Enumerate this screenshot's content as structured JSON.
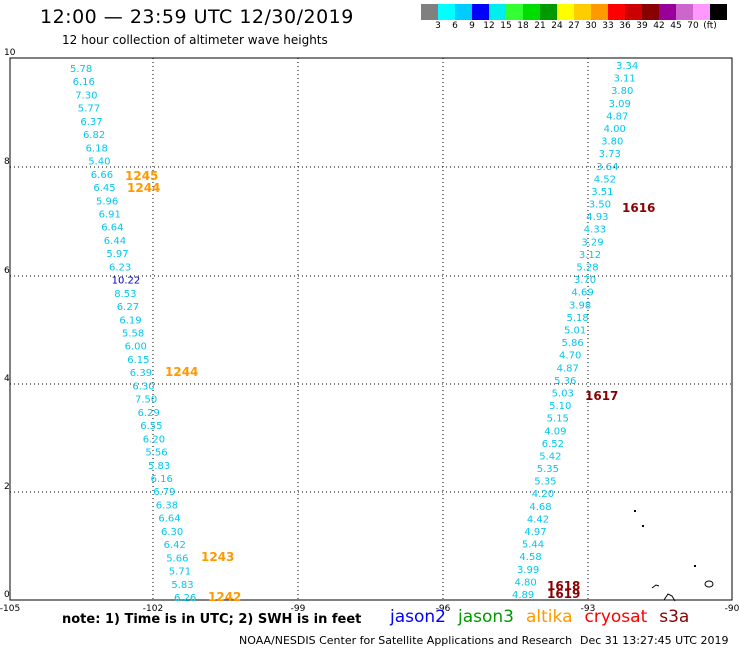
{
  "header": {
    "title": "12:00 — 23:59 UTC 12/30/2019",
    "subtitle": "12 hour collection of altimeter wave heights"
  },
  "color_scale": {
    "colors": [
      "#808080",
      "#00ffff",
      "#00ccff",
      "#0000ff",
      "#00eeee",
      "#33ff33",
      "#00dd00",
      "#009900",
      "#ffff00",
      "#ffcc00",
      "#ff9900",
      "#ff0000",
      "#cc0000",
      "#880000",
      "#990099",
      "#cc66cc",
      "#ff99ff",
      "#000000"
    ],
    "labels": [
      "3",
      "6",
      "9",
      "12",
      "15",
      "18",
      "21",
      "24",
      "27",
      "30",
      "33",
      "36",
      "39",
      "42",
      "45",
      "70",
      "(ft)"
    ]
  },
  "axes": {
    "x_ticks": [
      "-105",
      "-102",
      "-99",
      "-96",
      "-93",
      "-90"
    ],
    "y_ticks": [
      "0",
      "2",
      "4",
      "6",
      "8",
      "10"
    ]
  },
  "track_left": {
    "color": "#00c8ee",
    "values": [
      "5.78",
      "6.16",
      "7.30",
      "5.77",
      "6.37",
      "6.82",
      "6.18",
      "5.40",
      "6.66",
      "6.45",
      "5.96",
      "6.91",
      "6.64",
      "6.44",
      "5.97",
      "6.23",
      "10.22",
      "8.53",
      "6.27",
      "6.19",
      "5.58",
      "6.00",
      "6.15",
      "6.39",
      "6.30",
      "7.50",
      "6.29",
      "6.55",
      "6.20",
      "5.56",
      "5.83",
      "6.16",
      "6.79",
      "6.38",
      "6.64",
      "6.30",
      "6.42",
      "5.66",
      "5.71",
      "5.83",
      "6.26"
    ]
  },
  "track_right": {
    "color": "#00c8ee",
    "values": [
      "3.34",
      "3.11",
      "3.80",
      "3.09",
      "4.87",
      "4.00",
      "3.80",
      "3.73",
      "3.64",
      "4.52",
      "3.51",
      "3.50",
      "4.93",
      "4.33",
      "3.29",
      "3.12",
      "5.28",
      "3.70",
      "4.69",
      "3.98",
      "5.18",
      "5.01",
      "5.86",
      "4.70",
      "4.87",
      "5.36",
      "5.03",
      "5.10",
      "5.15",
      "4.09",
      "6.52",
      "5.42",
      "5.35",
      "5.35",
      "4.20",
      "4.68",
      "4.42",
      "4.97",
      "5.44",
      "4.58",
      "3.99",
      "4.80",
      "4.89"
    ]
  },
  "time_labels": [
    {
      "text": "1245",
      "color": "#ff9900"
    },
    {
      "text": "1244",
      "color": "#ff9900"
    },
    {
      "text": "1244",
      "color": "#ff9900"
    },
    {
      "text": "1243",
      "color": "#ff9900"
    },
    {
      "text": "1242",
      "color": "#ff9900"
    },
    {
      "text": "1616",
      "color": "#880000"
    },
    {
      "text": "1617",
      "color": "#880000"
    },
    {
      "text": "1618",
      "color": "#880000"
    },
    {
      "text": "1619",
      "color": "#880000"
    }
  ],
  "footer": {
    "note": "note:  1) Time is in UTC;  2) SWH is in feet",
    "satellites": [
      {
        "name": "jason2",
        "color": "#0000ff"
      },
      {
        "name": "jason3",
        "color": "#009900"
      },
      {
        "name": "altika",
        "color": "#ff9900"
      },
      {
        "name": "cryosat",
        "color": "#ff0000"
      },
      {
        "name": "s3a",
        "color": "#880000"
      }
    ],
    "credit": "NOAA/NESDIS Center for Satellite Applications and Research",
    "timestamp": "Dec 31 13:27:45 UTC 2019"
  }
}
